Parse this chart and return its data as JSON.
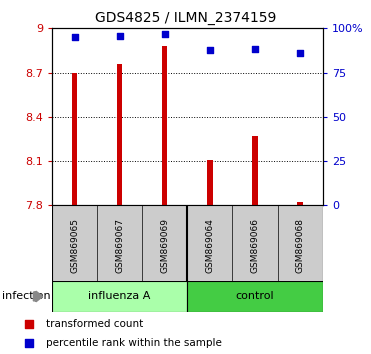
{
  "title": "GDS4825 / ILMN_2374159",
  "samples": [
    "GSM869065",
    "GSM869067",
    "GSM869069",
    "GSM869064",
    "GSM869066",
    "GSM869068"
  ],
  "bar_values": [
    8.7,
    8.755,
    8.88,
    8.11,
    8.27,
    7.82
  ],
  "percentile_values": [
    95.0,
    95.5,
    97.0,
    88.0,
    88.5,
    86.0
  ],
  "ylim_left": [
    7.8,
    9.0
  ],
  "ylim_right": [
    0,
    100
  ],
  "yticks_left": [
    7.8,
    8.1,
    8.4,
    8.7,
    9.0
  ],
  "yticks_right": [
    0,
    25,
    50,
    75,
    100
  ],
  "ytick_labels_left": [
    "7.8",
    "8.1",
    "8.4",
    "8.7",
    "9"
  ],
  "ytick_labels_right": [
    "0",
    "25",
    "50",
    "75",
    "100%"
  ],
  "bar_color": "#cc0000",
  "dot_color": "#0000cc",
  "bar_width": 0.12,
  "influenza_color": "#aaffaa",
  "control_color": "#44cc44",
  "group_label": "infection",
  "legend_bar_label": "transformed count",
  "legend_dot_label": "percentile rank within the sample",
  "tick_area_color": "#cccccc"
}
